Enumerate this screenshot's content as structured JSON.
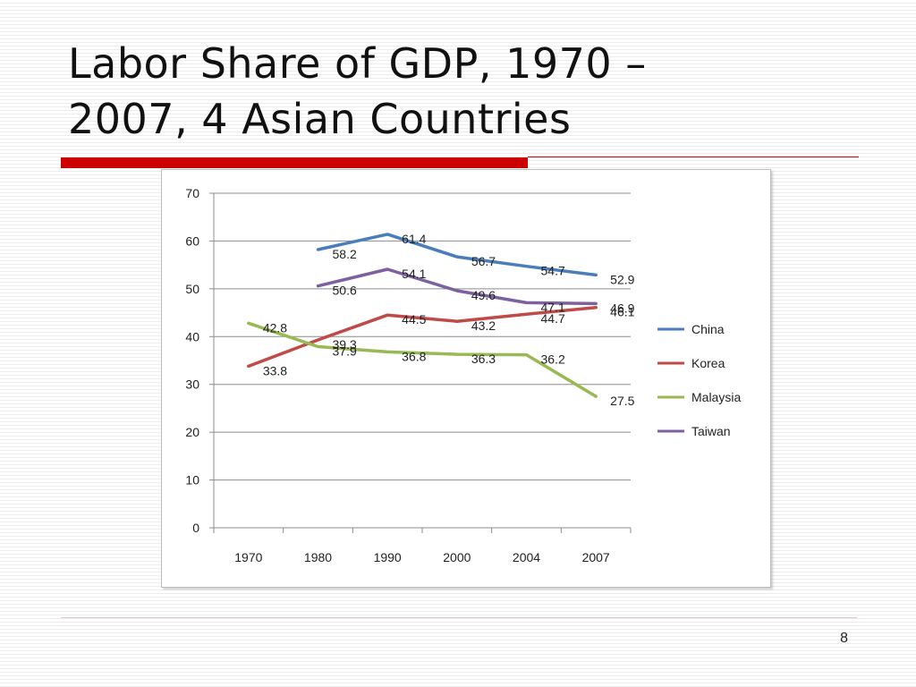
{
  "slide": {
    "title_line1": "Labor Share of GDP, 1970 –",
    "title_line2": "2007, 4 Asian Countries",
    "page_number": "8",
    "accent_color": "#cc0000"
  },
  "chart_data": {
    "type": "line",
    "categories": [
      "1970",
      "1980",
      "1990",
      "2000",
      "2004",
      "2007"
    ],
    "ylim": [
      0,
      70
    ],
    "yticks": [
      "0",
      "10",
      "20",
      "30",
      "40",
      "50",
      "60",
      "70"
    ],
    "grid": true,
    "legend_position": "right",
    "series": [
      {
        "name": "China",
        "color": "#4a7ebb",
        "values": [
          null,
          58.2,
          61.4,
          56.7,
          54.7,
          52.9
        ]
      },
      {
        "name": "Korea",
        "color": "#be4b48",
        "values": [
          33.8,
          39.3,
          44.5,
          43.2,
          44.7,
          46.1
        ]
      },
      {
        "name": "Malaysia",
        "color": "#98b954",
        "values": [
          42.8,
          37.9,
          36.8,
          36.3,
          36.2,
          27.5
        ]
      },
      {
        "name": "Taiwan",
        "color": "#7d60a0",
        "values": [
          null,
          50.6,
          54.1,
          49.6,
          47.1,
          46.9
        ]
      }
    ],
    "data_labels": [
      {
        "series": 0,
        "index": 1,
        "text": "58.2"
      },
      {
        "series": 0,
        "index": 2,
        "text": "61.4"
      },
      {
        "series": 0,
        "index": 3,
        "text": "56.7"
      },
      {
        "series": 0,
        "index": 4,
        "text": "54.7"
      },
      {
        "series": 0,
        "index": 5,
        "text": "52.9"
      },
      {
        "series": 1,
        "index": 0,
        "text": "33.8"
      },
      {
        "series": 1,
        "index": 1,
        "text": "39.3"
      },
      {
        "series": 1,
        "index": 2,
        "text": "44.5"
      },
      {
        "series": 1,
        "index": 3,
        "text": "43.2"
      },
      {
        "series": 1,
        "index": 4,
        "text": "44.7"
      },
      {
        "series": 1,
        "index": 5,
        "text": "46.1"
      },
      {
        "series": 2,
        "index": 0,
        "text": "42.8"
      },
      {
        "series": 2,
        "index": 1,
        "text": "37.9"
      },
      {
        "series": 2,
        "index": 2,
        "text": "36.8"
      },
      {
        "series": 2,
        "index": 3,
        "text": "36.3"
      },
      {
        "series": 2,
        "index": 4,
        "text": "36.2"
      },
      {
        "series": 2,
        "index": 5,
        "text": "27.5"
      },
      {
        "series": 3,
        "index": 1,
        "text": "50.6"
      },
      {
        "series": 3,
        "index": 2,
        "text": "54.1"
      },
      {
        "series": 3,
        "index": 3,
        "text": "49.6"
      },
      {
        "series": 3,
        "index": 4,
        "text": "47.1"
      },
      {
        "series": 3,
        "index": 5,
        "text": "46.9"
      }
    ]
  }
}
